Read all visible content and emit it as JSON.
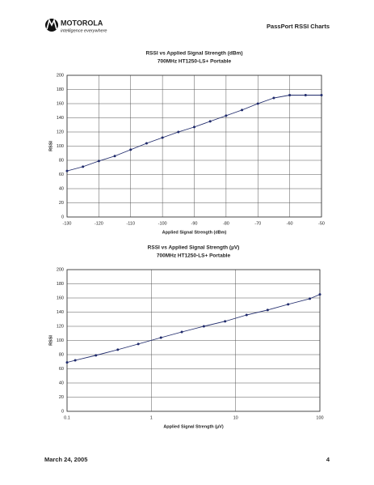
{
  "header": {
    "brand": "MOTOROLA",
    "tagline": "intelligence everywhere",
    "title": "PassPort RSSI Charts"
  },
  "footer": {
    "date": "March 24, 2005",
    "page": "4"
  },
  "chart_data": [
    {
      "type": "line",
      "title": "RSSI vs Applied Signal Strength (dBm)",
      "subtitle": "700MHz HT1250-LS+ Portable",
      "x_label": "Applied Signal Strength (dBm)",
      "y_label": "RSSI",
      "x": [
        -130,
        -125,
        -120,
        -115,
        -110,
        -105,
        -100,
        -95,
        -90,
        -85,
        -80,
        -75,
        -70,
        -65,
        -60,
        -55,
        -50
      ],
      "series": [
        {
          "color": "#1f2a6b",
          "values": [
            65,
            71,
            79,
            86,
            95,
            104,
            112,
            120,
            127,
            135,
            143,
            151,
            160,
            168,
            172,
            172,
            172
          ]
        }
      ],
      "xlim": [
        -130,
        -50
      ],
      "xticks": [
        -130,
        -120,
        -110,
        -100,
        -90,
        -80,
        -70,
        -60,
        -50
      ],
      "ylim": [
        0,
        200
      ],
      "yticks": [
        0,
        20,
        40,
        60,
        80,
        100,
        120,
        140,
        160,
        180,
        200
      ],
      "grid": true,
      "xlog": false
    },
    {
      "type": "line",
      "title": "RSSI vs Applied Signal Strength (µV)",
      "subtitle": "700MHz HT1250-LS+ Portable",
      "x_label": "Applied Signal Strength (µV)",
      "y_label": "RSSI",
      "x": [
        0.1,
        0.125,
        0.22,
        0.4,
        0.7,
        1.3,
        2.3,
        4.2,
        7.5,
        13.5,
        24,
        42,
        76,
        100
      ],
      "series": [
        {
          "color": "#1f2a6b",
          "values": [
            69,
            72,
            79,
            87,
            95,
            104,
            112,
            120,
            127,
            136,
            143,
            151,
            159,
            165
          ]
        }
      ],
      "xlim": [
        0.1,
        100
      ],
      "xticks": [
        0.1,
        1,
        10,
        100
      ],
      "ylim": [
        0,
        200
      ],
      "yticks": [
        0,
        20,
        40,
        60,
        80,
        100,
        120,
        140,
        160,
        180,
        200
      ],
      "grid": true,
      "xlog": true
    }
  ]
}
